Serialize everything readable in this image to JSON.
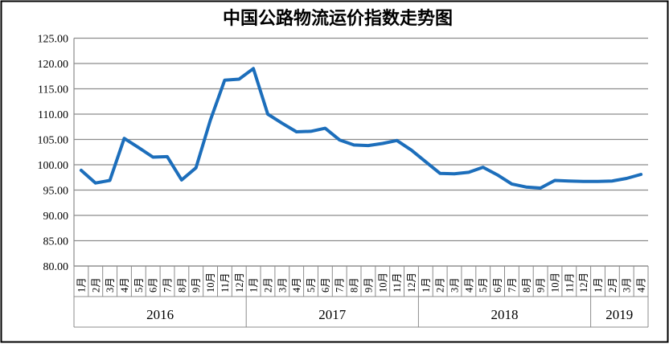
{
  "title": "中国公路物流运价指数走势图",
  "colors": {
    "line": "#1C6EBB",
    "grid": "#8C8C8C",
    "axis": "#8C8C8C",
    "text": "#000000",
    "background": "#FFFFFF",
    "border": "#000000"
  },
  "chart_data": {
    "type": "line",
    "title": "中国公路物流运价指数走势图",
    "xlabel": "",
    "ylabel": "",
    "ylim": [
      80,
      125
    ],
    "ytick_step": 5,
    "ytick_labels": [
      "80.00",
      "85.00",
      "90.00",
      "95.00",
      "100.00",
      "105.00",
      "110.00",
      "115.00",
      "120.00",
      "125.00"
    ],
    "grid": "horizontal-on",
    "legend": "none",
    "series_name": "中国公路物流运价指数",
    "groups": [
      {
        "year": "2016",
        "months": [
          "1月",
          "2月",
          "3月",
          "4月",
          "5月",
          "6月",
          "7月",
          "8月",
          "9月",
          "10月",
          "11月",
          "12月"
        ],
        "values": [
          98.9,
          96.4,
          96.9,
          105.2,
          103.4,
          101.5,
          101.6,
          97.0,
          99.4,
          108.8,
          116.7,
          116.9
        ]
      },
      {
        "year": "2017",
        "months": [
          "1月",
          "2月",
          "3月",
          "4月",
          "5月",
          "6月",
          "7月",
          "8月",
          "9月",
          "10月",
          "11月",
          "12月"
        ],
        "values": [
          119.0,
          110.0,
          108.2,
          106.5,
          106.6,
          107.2,
          104.9,
          103.9,
          103.8,
          104.2,
          104.8,
          102.9
        ]
      },
      {
        "year": "2018",
        "months": [
          "1月",
          "2月",
          "3月",
          "4月",
          "5月",
          "6月",
          "7月",
          "8月",
          "9月",
          "10月",
          "11月",
          "12月"
        ],
        "values": [
          100.6,
          98.3,
          98.2,
          98.5,
          99.5,
          98.0,
          96.2,
          95.6,
          95.4,
          96.9,
          96.8,
          96.7
        ]
      },
      {
        "year": "2019",
        "months": [
          "1月",
          "2月",
          "3月",
          "4月"
        ],
        "values": [
          96.7,
          96.8,
          97.3,
          98.1
        ]
      }
    ]
  }
}
